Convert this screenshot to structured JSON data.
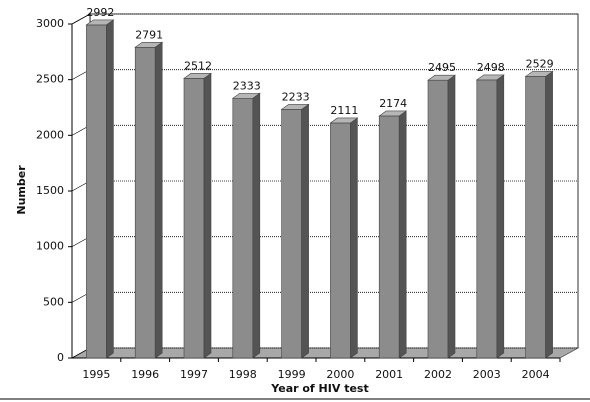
{
  "chart_data": {
    "type": "bar3d",
    "x_label": "Year of HIV test",
    "y_label": "Number",
    "categories": [
      "1995",
      "1996",
      "1997",
      "1998",
      "1999",
      "2000",
      "2001",
      "2002",
      "2003",
      "2004"
    ],
    "values": [
      2992,
      2791,
      2512,
      2333,
      2233,
      2111,
      2174,
      2495,
      2498,
      2529
    ],
    "color": "#8c8c8c",
    "ylim": [
      0,
      3000
    ],
    "yticks": [
      0,
      500,
      1000,
      1500,
      2000,
      2500,
      3000
    ],
    "grid": true
  }
}
